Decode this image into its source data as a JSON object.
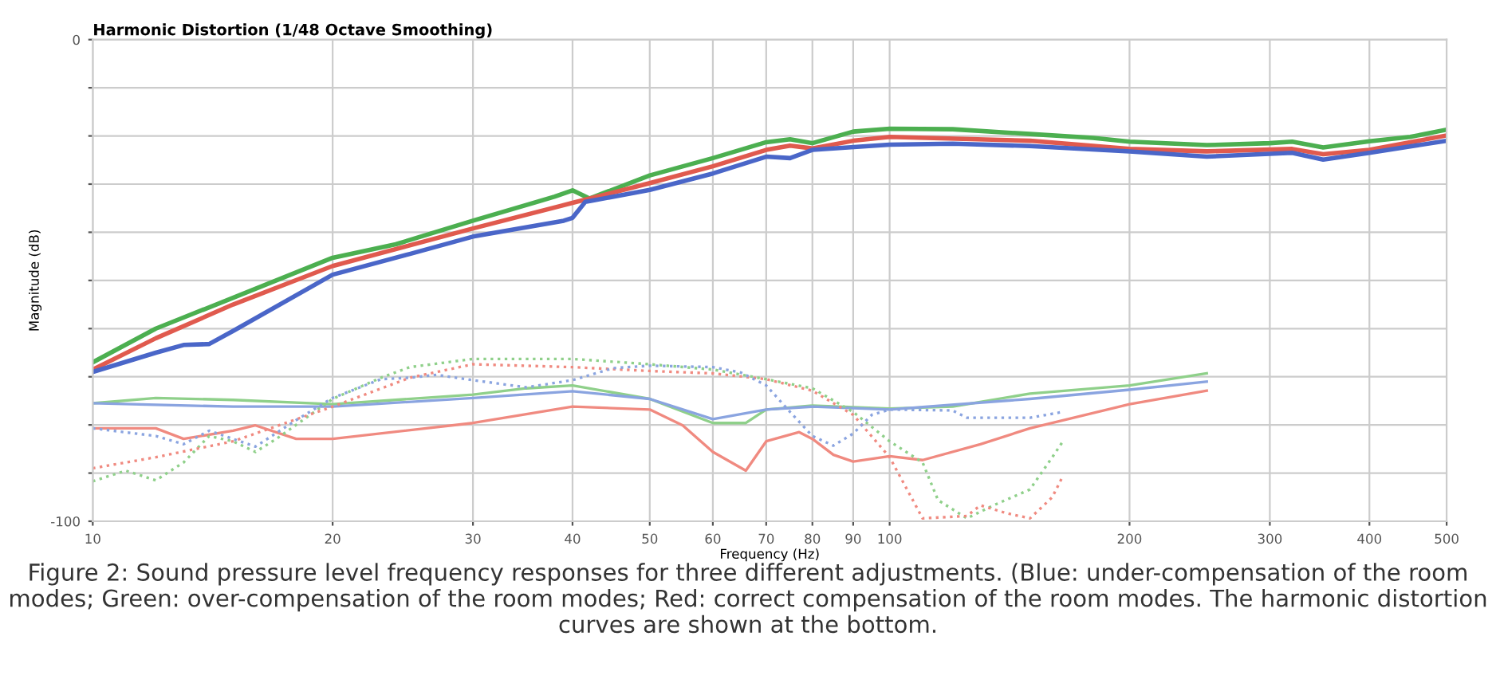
{
  "chart_data": {
    "type": "line",
    "title": "Harmonic Distortion (1/48 Octave Smoothing)",
    "xlabel": "Frequency (Hz)",
    "ylabel": "Magnitude (dB)",
    "log": "x",
    "xlim": [
      10,
      500
    ],
    "xticks": [
      10,
      20,
      30,
      40,
      50,
      60,
      70,
      80,
      90,
      100,
      200,
      300,
      400,
      500
    ],
    "ylim": [
      -100,
      0
    ],
    "yticks": [
      {
        "value": -100,
        "label": "-100"
      },
      {
        "value": -90,
        "label": null
      },
      {
        "value": -80,
        "label": null
      },
      {
        "value": -70,
        "label": null
      },
      {
        "value": -60,
        "label": null
      },
      {
        "value": -50,
        "label": null
      },
      {
        "value": -40,
        "label": null
      },
      {
        "value": -30,
        "label": null
      },
      {
        "value": -20,
        "label": null
      },
      {
        "value": -10,
        "label": null
      },
      0
    ],
    "grid": true,
    "legend": false,
    "marker": "none",
    "series": [
      {
        "color": "#4caf50",
        "line_style": "solid",
        "x": [
          10,
          12,
          15,
          20,
          24,
          30,
          38,
          40,
          42,
          50,
          60,
          70,
          75,
          80,
          90,
          100,
          120,
          150,
          180,
          200,
          250,
          300,
          320,
          350,
          400,
          450,
          500
        ],
        "values": [
          -67,
          -60,
          -53.6,
          -45.3,
          -42.5,
          -37.6,
          -32.6,
          -31.3,
          -33,
          -28.2,
          -24.6,
          -21.3,
          -20.7,
          -21.5,
          -19.1,
          -18.5,
          -18.6,
          -19.6,
          -20.4,
          -21.2,
          -21.9,
          -21.5,
          -21.2,
          -22.4,
          -21.1,
          -20.2,
          -18.7
        ]
      },
      {
        "color": "#e05a4e",
        "line_style": "solid",
        "x": [
          10,
          12,
          15,
          20,
          30,
          40,
          50,
          60,
          70,
          75,
          80,
          90,
          100,
          150,
          200,
          250,
          320,
          350,
          400,
          500
        ],
        "values": [
          -68.5,
          -62,
          -55,
          -47,
          -39.2,
          -33.9,
          -29.8,
          -26.3,
          -22.9,
          -22,
          -22.6,
          -21,
          -20.2,
          -21,
          -22.7,
          -23.2,
          -22.7,
          -23.8,
          -22.9,
          -19.9
        ]
      },
      {
        "color": "#4a66c8",
        "line_style": "solid",
        "x": [
          10,
          12,
          13,
          14,
          15,
          20,
          25,
          30,
          39,
          40,
          41.5,
          50,
          60,
          70,
          75,
          80,
          100,
          120,
          150,
          200,
          250,
          320,
          350,
          400,
          500
        ],
        "values": [
          -69,
          -65,
          -63.4,
          -63.2,
          -60.5,
          -48.8,
          -44.5,
          -40.9,
          -37.6,
          -37,
          -33.7,
          -31.2,
          -27.8,
          -24.3,
          -24.6,
          -22.9,
          -21.8,
          -21.6,
          -22.1,
          -23.2,
          -24.3,
          -23.5,
          -24.9,
          -23.5,
          -21
        ]
      },
      {
        "color": "#8fd08a",
        "line_style": "solid",
        "x": [
          10,
          12,
          15,
          20,
          30,
          35,
          40,
          50,
          60,
          66,
          70,
          80,
          100,
          120,
          150,
          200,
          250
        ],
        "values": [
          -75.5,
          -74.4,
          -74.8,
          -75.7,
          -73.7,
          -72.4,
          -71.8,
          -74.6,
          -79.6,
          -79.6,
          -76.8,
          -76,
          -76.6,
          -76.2,
          -73.5,
          -71.8,
          -69.3
        ]
      },
      {
        "color": "#8aa4e0",
        "line_style": "solid",
        "x": [
          10,
          15,
          20,
          30,
          40,
          50,
          60,
          70,
          80,
          100,
          150,
          200,
          250
        ],
        "values": [
          -75.5,
          -76.2,
          -76.2,
          -74.4,
          -73,
          -74.6,
          -78.8,
          -76.8,
          -76.2,
          -76.8,
          -74.6,
          -72.7,
          -71
        ]
      },
      {
        "color": "#f08a80",
        "line_style": "solid",
        "x": [
          10,
          12,
          13,
          15,
          16,
          18,
          20,
          30,
          40,
          50,
          55,
          60,
          66,
          70,
          77,
          80,
          85,
          90,
          100,
          110,
          130,
          150,
          200,
          250
        ],
        "values": [
          -80.7,
          -80.7,
          -82.9,
          -81.2,
          -80.1,
          -82.9,
          -82.9,
          -79.6,
          -76.2,
          -76.8,
          -80.1,
          -85.6,
          -89.5,
          -83.4,
          -81.5,
          -82.9,
          -86.2,
          -87.6,
          -86.5,
          -87.3,
          -84,
          -80.7,
          -75.7,
          -72.9
        ]
      },
      {
        "color": "#8fd08a",
        "line_style": "dotted",
        "x": [
          10,
          11,
          12,
          13,
          14,
          15,
          16,
          17,
          20,
          23,
          25,
          30,
          40,
          50,
          60,
          70,
          80,
          90,
          100,
          110,
          115,
          125,
          135,
          150,
          160,
          165
        ],
        "values": [
          -91.7,
          -89.5,
          -91.5,
          -87.8,
          -82.3,
          -83.4,
          -85.6,
          -82.9,
          -74.6,
          -70.2,
          -68,
          -66.3,
          -66.3,
          -67.4,
          -68.5,
          -70.5,
          -72.4,
          -77.3,
          -83.4,
          -87.8,
          -95.6,
          -99.4,
          -96.7,
          -93.4,
          -86.7,
          -83.4
        ]
      },
      {
        "color": "#f08a80",
        "line_style": "dotted",
        "x": [
          10,
          12,
          15,
          20,
          25,
          30,
          40,
          50,
          60,
          70,
          80,
          90,
          100,
          110,
          125,
          130,
          140,
          150,
          160,
          165
        ],
        "values": [
          -89,
          -86.7,
          -83.4,
          -76.2,
          -70.2,
          -67.4,
          -68,
          -68.8,
          -69.3,
          -70.5,
          -72.9,
          -77.9,
          -86.7,
          -99.4,
          -98.9,
          -96.7,
          -98.3,
          -99.4,
          -95,
          -90.6
        ]
      },
      {
        "color": "#8aa4e0",
        "line_style": "dotted",
        "x": [
          10,
          12,
          13,
          14,
          16,
          18,
          20,
          23,
          25,
          27,
          30,
          35,
          40,
          45,
          50,
          60,
          65,
          70,
          75,
          80,
          85,
          90,
          95,
          100,
          120,
          125,
          150,
          165
        ],
        "values": [
          -80.7,
          -82.3,
          -84,
          -81.2,
          -84.5,
          -79,
          -74.4,
          -70.5,
          -70.2,
          -69.6,
          -70.7,
          -72.2,
          -70.7,
          -68.2,
          -67.7,
          -68,
          -69.1,
          -71.8,
          -77.3,
          -82.3,
          -84.3,
          -81.8,
          -77.9,
          -76.8,
          -77,
          -78.5,
          -78.5,
          -77.3
        ]
      }
    ],
    "annotations": [
      "Figure 2: Sound pressure level frequency responses for three different adjustments. (Blue: under-compensation of the room modes; Green: over-compensation of the room modes; Red: correct compensation of the room modes. The harmonic distortion curves are shown at the bottom."
    ]
  }
}
